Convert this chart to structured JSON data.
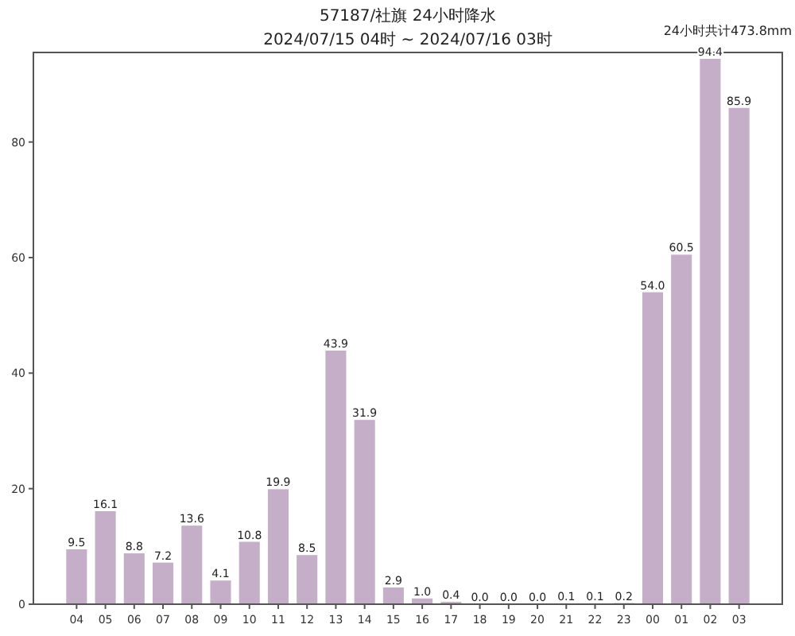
{
  "chart_data": {
    "type": "bar",
    "title": "57187/社旗 24小时降水",
    "subtitle": "2024/07/15 04时 ~ 2024/07/16 03时",
    "annotations": [
      "24小时共计473.8mm"
    ],
    "categories": [
      "04",
      "05",
      "06",
      "07",
      "08",
      "09",
      "10",
      "11",
      "12",
      "13",
      "14",
      "15",
      "16",
      "17",
      "18",
      "19",
      "20",
      "21",
      "22",
      "23",
      "00",
      "01",
      "02",
      "03"
    ],
    "values": [
      9.5,
      16.1,
      8.8,
      7.2,
      13.6,
      4.1,
      10.8,
      19.9,
      8.5,
      43.9,
      31.9,
      2.9,
      1.0,
      0.4,
      0.0,
      0.0,
      0.0,
      0.1,
      0.1,
      0.2,
      54.0,
      60.5,
      94.4,
      85.9
    ],
    "value_labels": [
      "9.5",
      "16.1",
      "8.8",
      "7.2",
      "13.6",
      "4.1",
      "10.8",
      "19.9",
      "8.5",
      "43.9",
      "31.9",
      "2.9",
      "1.0",
      "0.4",
      "0.0",
      "0.0",
      "0.0",
      "0.1",
      "0.1",
      "0.2",
      "54.0",
      "60.5",
      "94.4",
      "85.9"
    ],
    "color": "#c4aec8",
    "ylim": [
      0,
      95.5
    ],
    "yticks": [
      0,
      20,
      40,
      60,
      80
    ],
    "grid": false
  }
}
